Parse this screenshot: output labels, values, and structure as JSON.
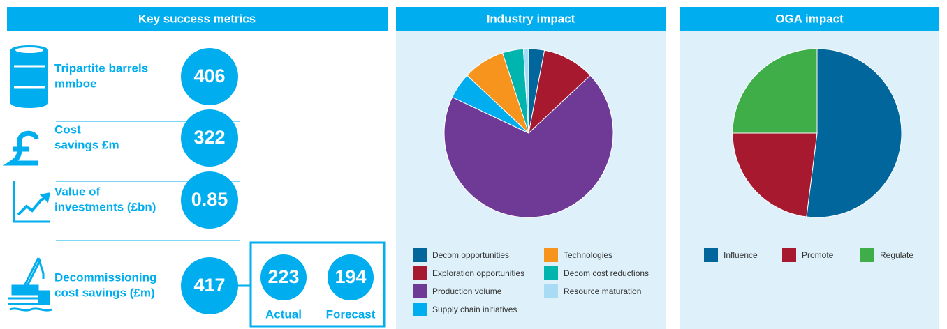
{
  "metrics": {
    "title": "Key success metrics",
    "items": [
      {
        "label": [
          "Tripartite barrels",
          "mmboe"
        ],
        "value": 406
      },
      {
        "label": [
          "Cost",
          "savings £m"
        ],
        "value": 322
      },
      {
        "label": [
          "Value of",
          "investments (£bn)"
        ],
        "value": 0.85
      },
      {
        "label": [
          "Decommissioning",
          "cost savings (£m)"
        ],
        "value": 417
      }
    ],
    "breakdown": [
      {
        "value": 223,
        "label": "Actual"
      },
      {
        "value": 194,
        "label": "Forecast"
      }
    ]
  },
  "chart_data": [
    {
      "type": "pie",
      "title": "Industry impact",
      "categories": [
        "Decom opportunities",
        "Exploration opportunities",
        "Production volume",
        "Supply chain initiatives",
        "Technologies",
        "Decom cost reductions",
        "Resource maturation"
      ],
      "values": [
        3,
        10,
        69,
        5,
        8,
        4,
        1
      ],
      "colors": [
        "#00669b",
        "#a6192e",
        "#6f3996",
        "#00aeef",
        "#f7941d",
        "#00b5ad",
        "#a8dcf5"
      ]
    },
    {
      "type": "pie",
      "title": "OGA impact",
      "categories": [
        "Influence",
        "Promote",
        "Regulate"
      ],
      "values": [
        52,
        23,
        25
      ],
      "colors": [
        "#00669b",
        "#a6192e",
        "#3fae49"
      ]
    }
  ]
}
